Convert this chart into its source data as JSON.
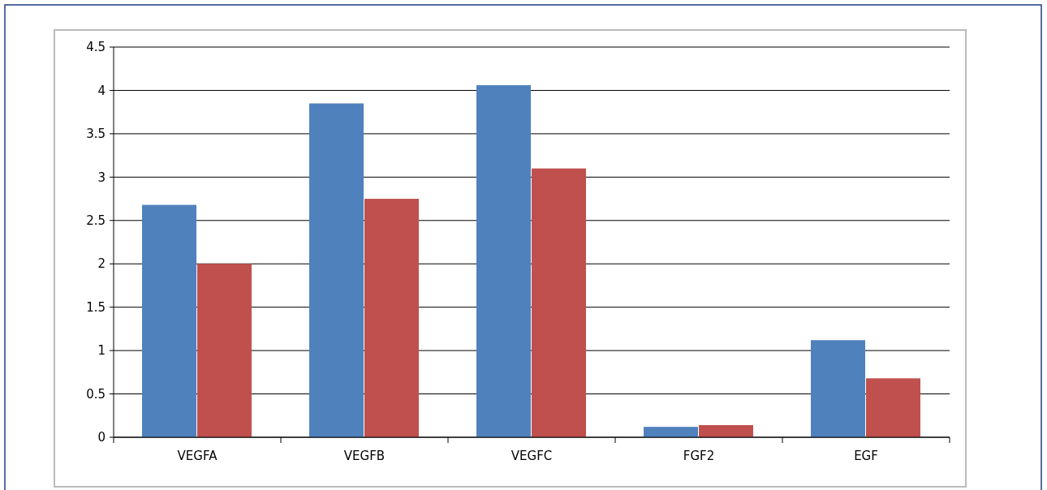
{
  "chart_data": {
    "type": "bar",
    "categories": [
      "VEGFA",
      "VEGFB",
      "VEGFC",
      "FGF2",
      "EGF"
    ],
    "series": [
      {
        "color": "#4f81bd",
        "values": [
          2.68,
          3.85,
          4.06,
          0.12,
          1.12
        ]
      },
      {
        "color": "#c0504d",
        "values": [
          2.0,
          2.75,
          3.1,
          0.14,
          0.68
        ]
      }
    ],
    "ylim": [
      0,
      4.5
    ],
    "yticks": [
      0,
      0.5,
      1,
      1.5,
      2,
      2.5,
      3,
      3.5,
      4,
      4.5
    ],
    "grid": "y"
  }
}
